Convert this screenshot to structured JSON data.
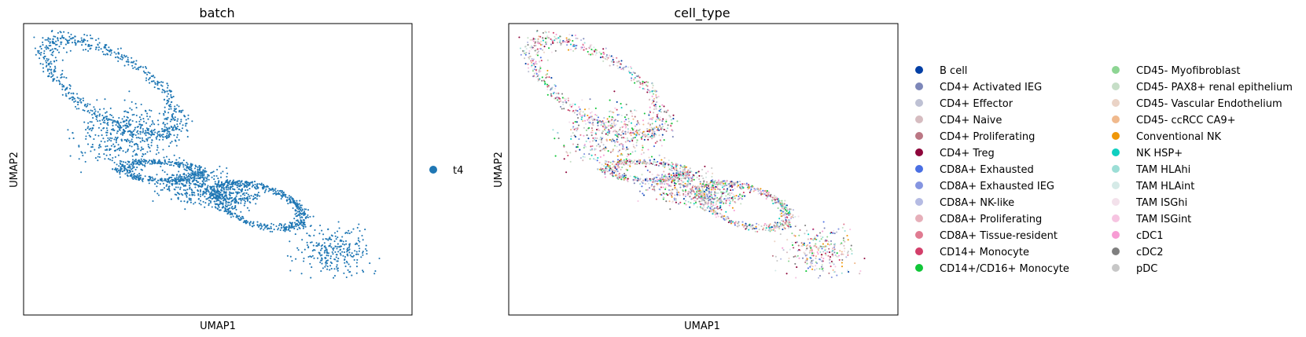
{
  "chart_data": [
    {
      "type": "scatter",
      "title": "batch",
      "xlabel": "UMAP1",
      "ylabel": "UMAP2",
      "grid": false,
      "ticks": false,
      "legend": {
        "placement": "right",
        "entries": [
          {
            "name": "t4",
            "color": "#1f77b4"
          }
        ]
      }
    },
    {
      "type": "scatter",
      "title": "cell_type",
      "xlabel": "UMAP1",
      "ylabel": "UMAP2",
      "grid": false,
      "ticks": false,
      "legend": {
        "placement": "right",
        "columns": 2,
        "entries": [
          {
            "name": "B cell",
            "color": "#023fa5"
          },
          {
            "name": "CD4+ Activated IEG",
            "color": "#7d87b9"
          },
          {
            "name": "CD4+ Effector",
            "color": "#bec1d4"
          },
          {
            "name": "CD4+ Naive",
            "color": "#d6bcc0"
          },
          {
            "name": "CD4+ Proliferating",
            "color": "#bb7784"
          },
          {
            "name": "CD4+ Treg",
            "color": "#8e063b"
          },
          {
            "name": "CD8A+ Exhausted",
            "color": "#4a6fe3"
          },
          {
            "name": "CD8A+ Exhausted IEG",
            "color": "#8595e1"
          },
          {
            "name": "CD8A+ NK-like",
            "color": "#b5bbe3"
          },
          {
            "name": "CD8A+ Proliferating",
            "color": "#e6afb9"
          },
          {
            "name": "CD8A+ Tissue-resident",
            "color": "#e07b91"
          },
          {
            "name": "CD14+ Monocyte",
            "color": "#d33f6a"
          },
          {
            "name": "CD14+/CD16+ Monocyte",
            "color": "#11c638"
          },
          {
            "name": "CD45- Myofibroblast",
            "color": "#8dd593"
          },
          {
            "name": "CD45- PAX8+ renal epithelium",
            "color": "#c6dec7"
          },
          {
            "name": "CD45- Vascular Endothelium",
            "color": "#ead3c6"
          },
          {
            "name": "CD45- ccRCC CA9+",
            "color": "#f0b98d"
          },
          {
            "name": "Conventional NK",
            "color": "#ef9708"
          },
          {
            "name": "NK HSP+",
            "color": "#0fcfc0"
          },
          {
            "name": "TAM HLAhi",
            "color": "#9cded6"
          },
          {
            "name": "TAM HLAint",
            "color": "#d5eae7"
          },
          {
            "name": "TAM ISGhi",
            "color": "#f3e1eb"
          },
          {
            "name": "TAM ISGint",
            "color": "#f6c4e1"
          },
          {
            "name": "cDC1",
            "color": "#f79cd4"
          },
          {
            "name": "cDC2",
            "color": "#7f7f7f"
          },
          {
            "name": "pDC",
            "color": "#c7c7c7"
          }
        ]
      }
    }
  ]
}
